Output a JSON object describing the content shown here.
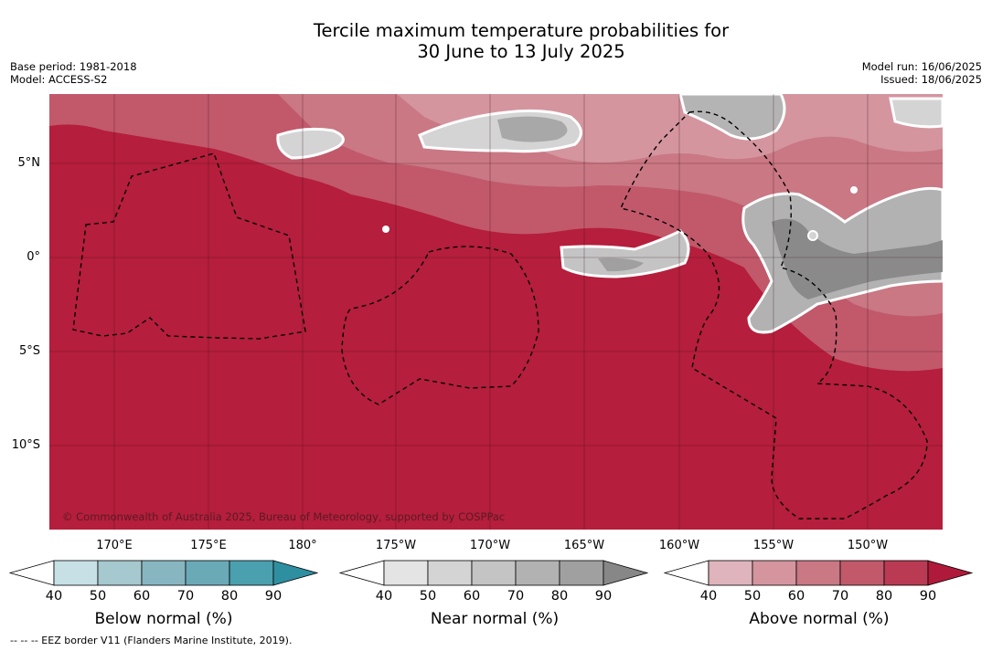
{
  "title_line1": "Tercile maximum temperature probabilities for",
  "title_line2": "30 June to 13 July 2025",
  "base_period": "Base period: 1981-2018",
  "model": "Model: ACCESS-S2",
  "model_run": "Model run: 16/06/2025",
  "issued": "Issued: 18/06/2025",
  "lat_labels": [
    "5°N",
    "0°",
    "5°S",
    "10°S"
  ],
  "lon_labels": [
    "170°E",
    "175°E",
    "180°",
    "175°W",
    "170°W",
    "165°W",
    "160°W",
    "155°W",
    "150°W"
  ],
  "copyright": "© Commonwealth of Australia 2025, Bureau of Meteorology, supported by COSPPac",
  "legend_note": "--  --  -- EEZ border V11 (Flanders Marine Institute, 2019).",
  "colorbars": [
    {
      "title": "Below normal (%)",
      "ticks": [
        "40",
        "50",
        "60",
        "70",
        "80",
        "90"
      ],
      "colors": [
        "#ffffff",
        "#c6e0e6",
        "#a6c8cf",
        "#88b6c0",
        "#6aaab7",
        "#4aa0ae",
        "#2e8fa1"
      ]
    },
    {
      "title": "Near normal (%)",
      "ticks": [
        "40",
        "50",
        "60",
        "70",
        "80",
        "90"
      ],
      "colors": [
        "#ffffff",
        "#e4e4e4",
        "#d4d4d4",
        "#c4c4c4",
        "#b2b2b2",
        "#a0a0a0",
        "#878787"
      ]
    },
    {
      "title": "Above normal (%)",
      "ticks": [
        "40",
        "50",
        "60",
        "70",
        "80",
        "90"
      ],
      "colors": [
        "#ffffff",
        "#e0b4bc",
        "#d4959f",
        "#c97884",
        "#c1596b",
        "#b93a52",
        "#b01a3a"
      ]
    }
  ]
}
